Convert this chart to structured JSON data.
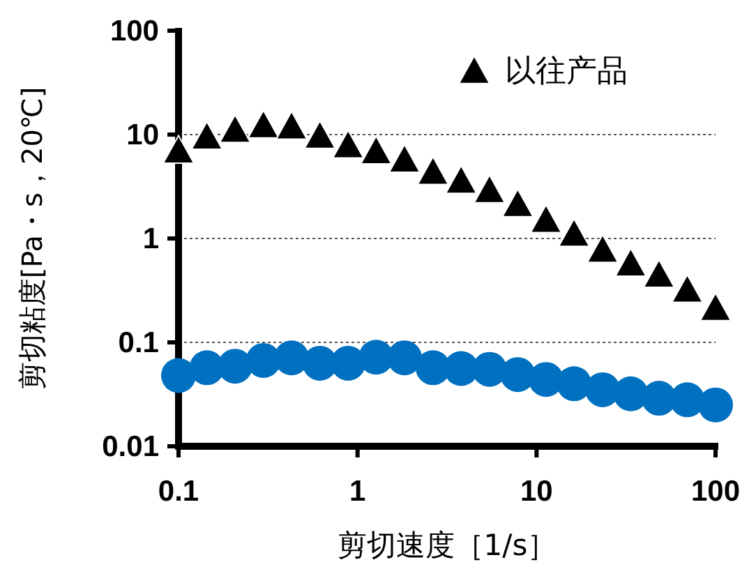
{
  "chart_data": {
    "type": "scatter",
    "xlabel": "剪切速度［1/s］",
    "ylabel": "剪切粘度[Pa・s，20℃]",
    "log": "xy",
    "xlim": [
      0.1,
      100
    ],
    "ylim": [
      0.01,
      100
    ],
    "xticks": [
      0.1,
      1,
      10,
      100
    ],
    "yticks": [
      0.01,
      0.1,
      1,
      10,
      100
    ],
    "grid": "y",
    "legend": "top right",
    "x": [
      0.1,
      0.144,
      0.207,
      0.298,
      0.428,
      0.616,
      0.886,
      1.27,
      1.83,
      2.64,
      3.79,
      5.46,
      7.85,
      11.3,
      16.2,
      23.4,
      33.6,
      48.3,
      69.5,
      100
    ],
    "series": [
      {
        "name": "以往产品",
        "color": "#000000",
        "marker": "triangle",
        "values": [
          7.2,
          9.8,
          11.4,
          12.6,
          12.3,
          10,
          8.1,
          7.1,
          5.9,
          4.5,
          3.7,
          3.0,
          2.2,
          1.55,
          1.14,
          0.8,
          0.59,
          0.46,
          0.33,
          0.22
        ]
      },
      {
        "color": "#0070c0",
        "marker": "circle",
        "values": [
          0.048,
          0.057,
          0.059,
          0.067,
          0.071,
          0.063,
          0.063,
          0.072,
          0.071,
          0.057,
          0.056,
          0.055,
          0.049,
          0.044,
          0.04,
          0.035,
          0.032,
          0.029,
          0.028,
          0.025
        ]
      }
    ]
  }
}
